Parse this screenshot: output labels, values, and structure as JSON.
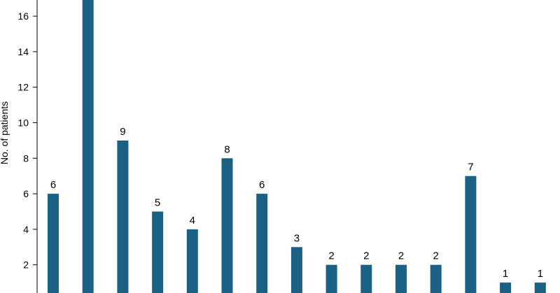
{
  "chart_data": {
    "type": "bar",
    "title": "",
    "xlabel": "",
    "ylabel": "No. of patients",
    "ylim": [
      0,
      17.2
    ],
    "yticks": [
      2,
      4,
      6,
      8,
      10,
      12,
      14,
      16
    ],
    "grid": false,
    "legend": "none",
    "categories": [
      "",
      "",
      "",
      "",
      "",
      "",
      "",
      "",
      "",
      "",
      "",
      "",
      "",
      "",
      ""
    ],
    "values": [
      6,
      17,
      9,
      5,
      4,
      8,
      6,
      3,
      2,
      2,
      2,
      2,
      7,
      1,
      1
    ],
    "value_labels": [
      "6",
      "",
      "9",
      "5",
      "4",
      "8",
      "6",
      "3",
      "2",
      "2",
      "2",
      "2",
      "7",
      "1",
      "1"
    ],
    "tick_labels": [
      "2",
      "4",
      "6",
      "8",
      "10",
      "12",
      "14",
      "16"
    ],
    "colors": {
      "bar": "#1a6183",
      "axis": "#000000"
    }
  }
}
